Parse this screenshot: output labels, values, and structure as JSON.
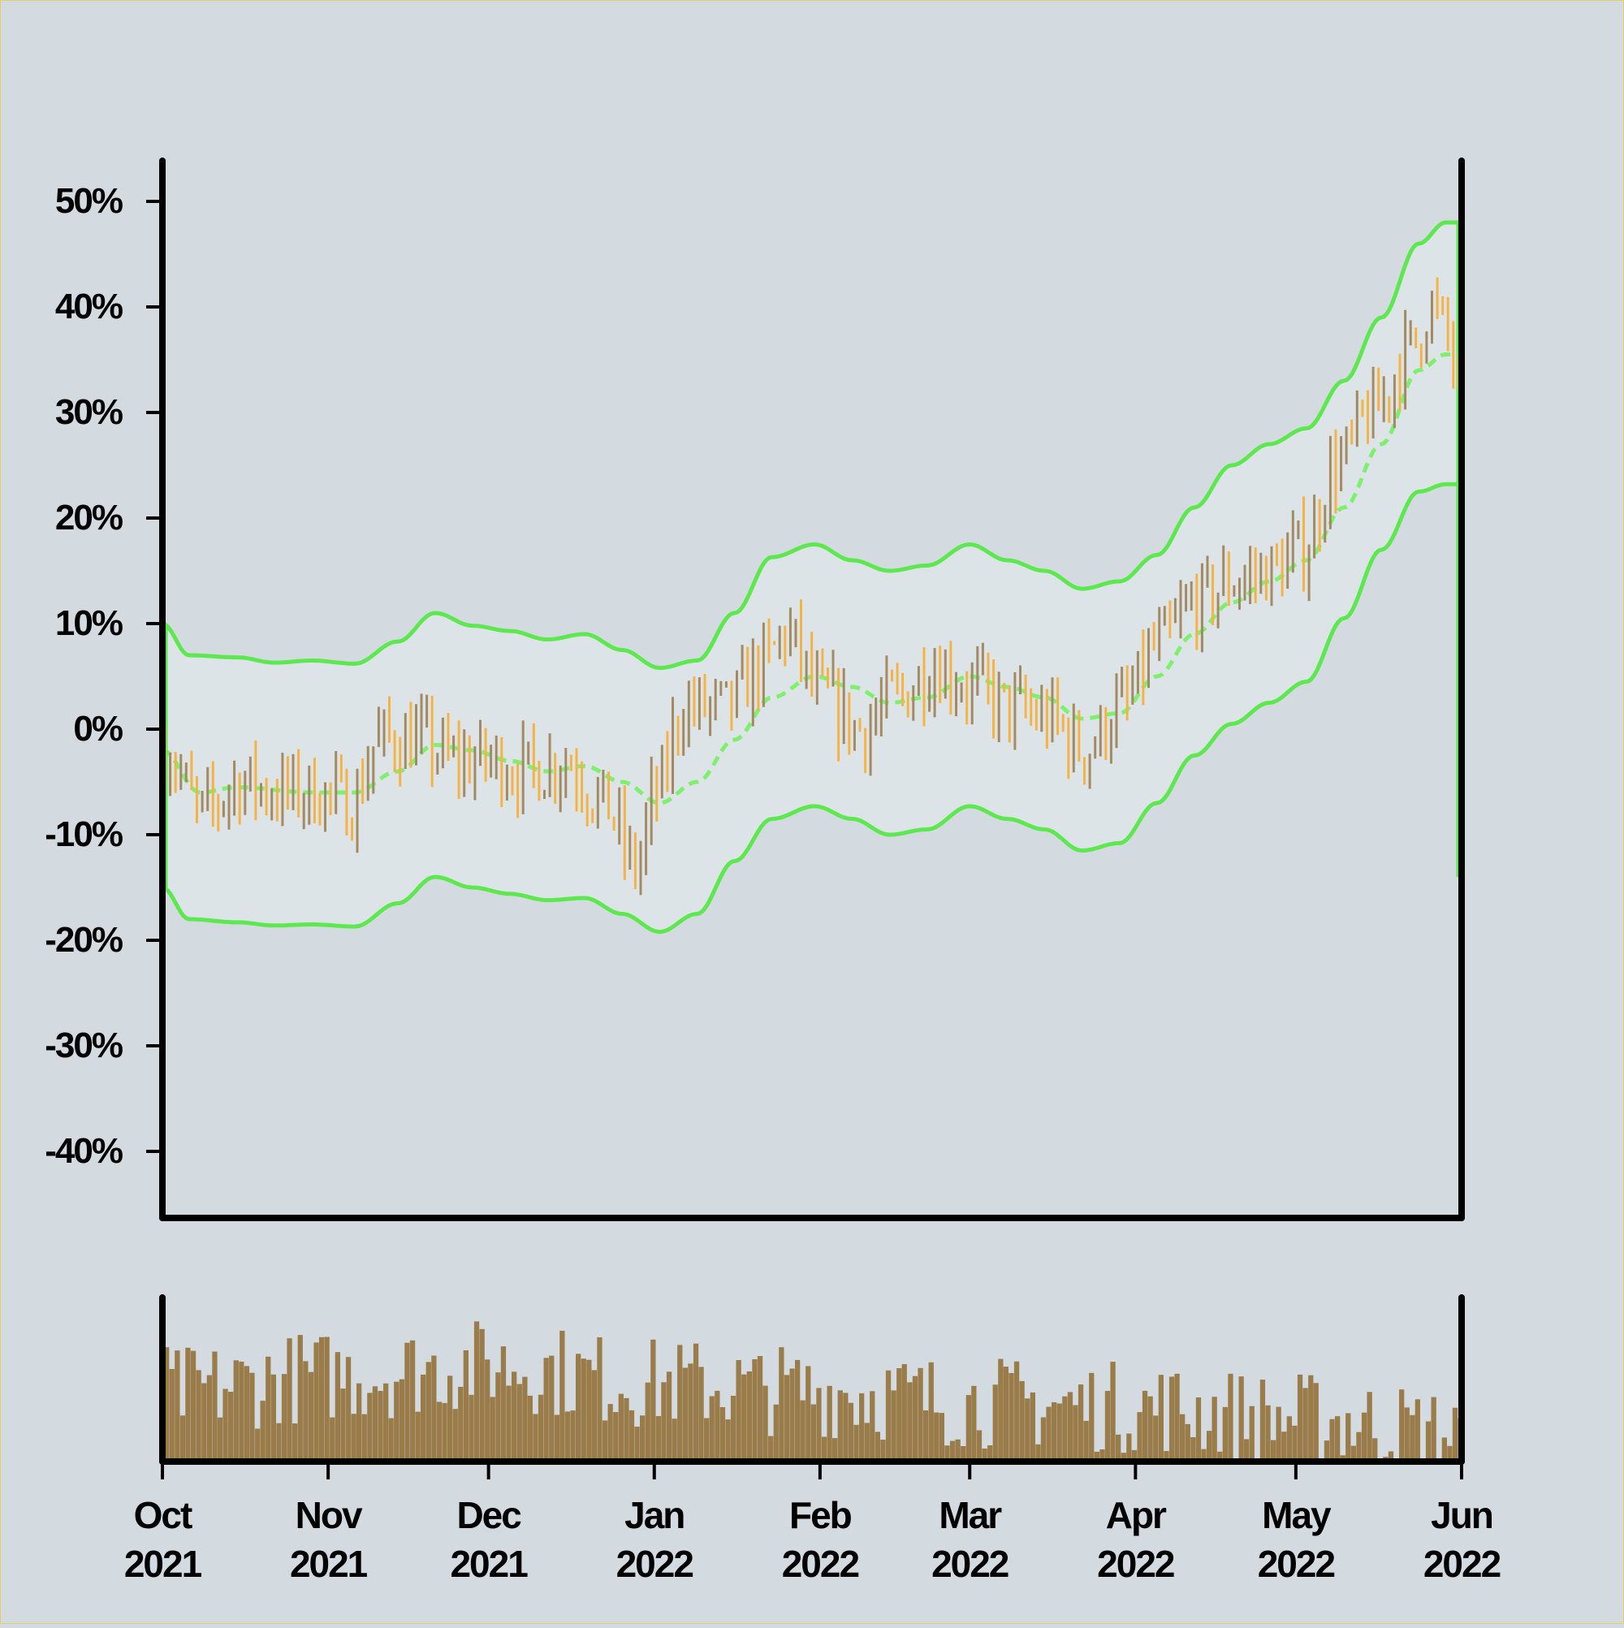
{
  "chart_data": {
    "type": "ohlc",
    "price_panel": {
      "y_unit": "%",
      "ylim": [
        -46,
        54
      ],
      "y_ticks": [
        -40,
        -30,
        -20,
        -10,
        0,
        10,
        20,
        30,
        40,
        50
      ],
      "y_tick_labels": [
        "-40%",
        "-30%",
        "-20%",
        "-10%",
        "0%",
        "10%",
        "20%",
        "30%",
        "40%",
        "50%"
      ],
      "close_path": [
        [
          "2021-10-01",
          -2
        ],
        [
          "2021-10-08",
          -8
        ],
        [
          "2021-10-15",
          -5
        ],
        [
          "2021-10-22",
          -6
        ],
        [
          "2021-10-29",
          -6
        ],
        [
          "2021-11-05",
          -7
        ],
        [
          "2021-11-10",
          -1
        ],
        [
          "2021-11-17",
          -1
        ],
        [
          "2021-11-24",
          -3
        ],
        [
          "2021-12-01",
          -3
        ],
        [
          "2021-12-08",
          -4
        ],
        [
          "2021-12-15",
          -3
        ],
        [
          "2021-12-22",
          -7
        ],
        [
          "2021-12-28",
          -13
        ],
        [
          "2022-01-01",
          -6
        ],
        [
          "2022-01-06",
          2
        ],
        [
          "2022-01-14",
          2
        ],
        [
          "2022-01-21",
          6
        ],
        [
          "2022-01-25",
          9
        ],
        [
          "2022-02-01",
          3
        ],
        [
          "2022-02-08",
          0
        ],
        [
          "2022-02-15",
          3
        ],
        [
          "2022-02-22",
          6
        ],
        [
          "2022-03-01",
          4
        ],
        [
          "2022-03-08",
          2
        ],
        [
          "2022-03-15",
          1
        ],
        [
          "2022-03-22",
          -2
        ],
        [
          "2022-03-29",
          2
        ],
        [
          "2022-04-05",
          8
        ],
        [
          "2022-04-12",
          12
        ],
        [
          "2022-04-19",
          14
        ],
        [
          "2022-04-26",
          15
        ],
        [
          "2022-05-02",
          17
        ],
        [
          "2022-05-08",
          25
        ],
        [
          "2022-05-15",
          30
        ],
        [
          "2022-05-22",
          36
        ],
        [
          "2022-05-26",
          40
        ],
        [
          "2022-05-29",
          37
        ],
        [
          "2022-06-01",
          29
        ]
      ],
      "bollinger": {
        "middle": [
          [
            "2021-10-01",
            -2
          ],
          [
            "2021-10-08",
            -6
          ],
          [
            "2021-10-15",
            -5.5
          ],
          [
            "2021-10-29",
            -6
          ],
          [
            "2021-11-06",
            -6
          ],
          [
            "2021-11-14",
            -4
          ],
          [
            "2021-11-21",
            -1.5
          ],
          [
            "2021-11-28",
            -2
          ],
          [
            "2021-12-05",
            -3
          ],
          [
            "2021-12-12",
            -4
          ],
          [
            "2021-12-19",
            -3.5
          ],
          [
            "2021-12-26",
            -5
          ],
          [
            "2022-01-02",
            -7
          ],
          [
            "2022-01-09",
            -5
          ],
          [
            "2022-01-16",
            -1
          ],
          [
            "2022-01-23",
            3
          ],
          [
            "2022-01-31",
            5
          ],
          [
            "2022-02-07",
            4
          ],
          [
            "2022-02-14",
            2.5
          ],
          [
            "2022-02-21",
            3
          ],
          [
            "2022-03-01",
            5
          ],
          [
            "2022-03-08",
            4
          ],
          [
            "2022-03-15",
            3
          ],
          [
            "2022-03-22",
            1
          ],
          [
            "2022-03-29",
            1.5
          ],
          [
            "2022-04-05",
            5
          ],
          [
            "2022-04-12",
            9
          ],
          [
            "2022-04-19",
            12
          ],
          [
            "2022-04-26",
            14
          ],
          [
            "2022-05-03",
            16
          ],
          [
            "2022-05-10",
            21
          ],
          [
            "2022-05-17",
            27
          ],
          [
            "2022-05-24",
            34
          ],
          [
            "2022-05-29",
            35.5
          ],
          [
            "2022-06-01",
            35.5
          ]
        ],
        "upper": [
          [
            "2021-10-01",
            10
          ],
          [
            "2021-10-06",
            7
          ],
          [
            "2021-10-15",
            6.8
          ],
          [
            "2021-10-22",
            6.3
          ],
          [
            "2021-10-29",
            6.5
          ],
          [
            "2021-11-06",
            6.2
          ],
          [
            "2021-11-14",
            8.3
          ],
          [
            "2021-11-21",
            11
          ],
          [
            "2021-11-28",
            9.8
          ],
          [
            "2021-12-05",
            9.3
          ],
          [
            "2021-12-12",
            8.5
          ],
          [
            "2021-12-19",
            9
          ],
          [
            "2021-12-26",
            7.5
          ],
          [
            "2022-01-02",
            5.8
          ],
          [
            "2022-01-09",
            6.5
          ],
          [
            "2022-01-16",
            11
          ],
          [
            "2022-01-23",
            16.3
          ],
          [
            "2022-01-31",
            17.5
          ],
          [
            "2022-02-07",
            16
          ],
          [
            "2022-02-14",
            15
          ],
          [
            "2022-02-21",
            15.5
          ],
          [
            "2022-03-01",
            17.5
          ],
          [
            "2022-03-08",
            16
          ],
          [
            "2022-03-15",
            15
          ],
          [
            "2022-03-22",
            13.3
          ],
          [
            "2022-03-29",
            14
          ],
          [
            "2022-04-05",
            16.5
          ],
          [
            "2022-04-12",
            21
          ],
          [
            "2022-04-19",
            25
          ],
          [
            "2022-04-26",
            27
          ],
          [
            "2022-05-03",
            28.5
          ],
          [
            "2022-05-10",
            33
          ],
          [
            "2022-05-17",
            39
          ],
          [
            "2022-05-24",
            46
          ],
          [
            "2022-05-29",
            48
          ],
          [
            "2022-06-01",
            48
          ]
        ],
        "lower": [
          [
            "2021-10-01",
            -15
          ],
          [
            "2021-10-06",
            -18
          ],
          [
            "2021-10-15",
            -18.3
          ],
          [
            "2021-10-22",
            -18.6
          ],
          [
            "2021-10-29",
            -18.5
          ],
          [
            "2021-11-06",
            -18.7
          ],
          [
            "2021-11-14",
            -16.5
          ],
          [
            "2021-11-21",
            -14
          ],
          [
            "2021-11-28",
            -15
          ],
          [
            "2021-12-05",
            -15.6
          ],
          [
            "2021-12-12",
            -16.2
          ],
          [
            "2021-12-19",
            -16
          ],
          [
            "2021-12-26",
            -17.5
          ],
          [
            "2022-01-02",
            -19.2
          ],
          [
            "2022-01-09",
            -17.5
          ],
          [
            "2022-01-16",
            -12.5
          ],
          [
            "2022-01-23",
            -8.5
          ],
          [
            "2022-01-31",
            -7.3
          ],
          [
            "2022-02-07",
            -8.5
          ],
          [
            "2022-02-14",
            -10
          ],
          [
            "2022-02-21",
            -9.5
          ],
          [
            "2022-03-01",
            -7.3
          ],
          [
            "2022-03-08",
            -8.5
          ],
          [
            "2022-03-15",
            -9.5
          ],
          [
            "2022-03-22",
            -11.5
          ],
          [
            "2022-03-29",
            -10.8
          ],
          [
            "2022-04-05",
            -7
          ],
          [
            "2022-04-12",
            -2.5
          ],
          [
            "2022-04-19",
            0.5
          ],
          [
            "2022-04-26",
            2.5
          ],
          [
            "2022-05-03",
            4.5
          ],
          [
            "2022-05-10",
            10.5
          ],
          [
            "2022-05-17",
            17
          ],
          [
            "2022-05-24",
            22.5
          ],
          [
            "2022-05-29",
            23.2
          ],
          [
            "2022-06-01",
            23.2
          ]
        ]
      }
    },
    "volume_panel": {
      "profile": [
        [
          "2021-10-01",
          0.45
        ],
        [
          "2021-11-01",
          0.55
        ],
        [
          "2021-12-01",
          0.62
        ],
        [
          "2022-01-01",
          0.5
        ],
        [
          "2022-02-01",
          0.45
        ],
        [
          "2022-03-01",
          0.38
        ],
        [
          "2022-04-01",
          0.35
        ],
        [
          "2022-05-01",
          0.28
        ],
        [
          "2022-06-01",
          0.18
        ]
      ]
    },
    "x_range": [
      "2021-10-01",
      "2022-06-01"
    ],
    "x_ticks": [
      {
        "date": "2021-10-01",
        "month": "Oct",
        "year": "2021"
      },
      {
        "date": "2021-11-01",
        "month": "Nov",
        "year": "2021"
      },
      {
        "date": "2021-12-01",
        "month": "Dec",
        "year": "2021"
      },
      {
        "date": "2022-01-01",
        "month": "Jan",
        "year": "2022"
      },
      {
        "date": "2022-02-01",
        "month": "Feb",
        "year": "2022"
      },
      {
        "date": "2022-03-01",
        "month": "Mar",
        "year": "2022"
      },
      {
        "date": "2022-04-01",
        "month": "Apr",
        "year": "2022"
      },
      {
        "date": "2022-05-01",
        "month": "May",
        "year": "2022"
      },
      {
        "date": "2022-06-01",
        "month": "Jun",
        "year": "2022"
      }
    ],
    "colors": {
      "background": "#d3dbe0",
      "band_fill": "#dde4e8",
      "band_line": "#5ee84f",
      "middle_line": "#7ef06e",
      "up_bar": "#a38a62",
      "down_bar": "#f5b345",
      "volume_bar": "#9a7c4a",
      "axis": "#000000"
    }
  }
}
